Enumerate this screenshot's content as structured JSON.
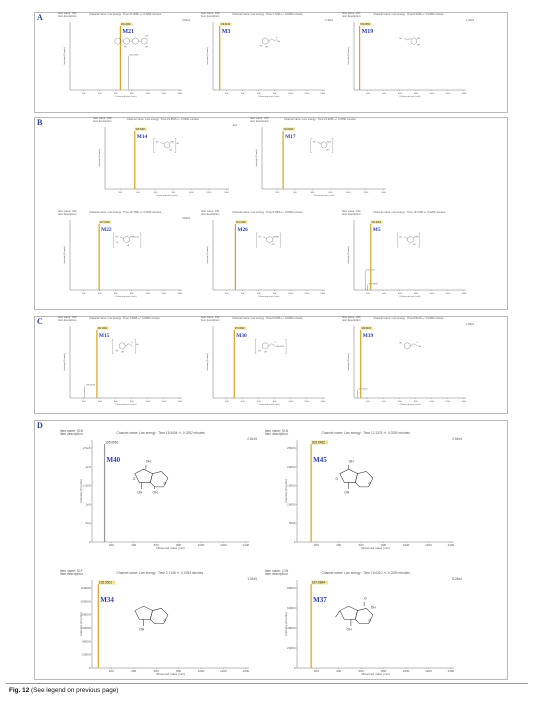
{
  "caption": {
    "label": "Fig. 12",
    "text": "(See legend on previous page)"
  },
  "panels": {
    "A": {
      "letter": "A",
      "spectra": [
        {
          "id": "A1",
          "x": 62,
          "y": 20,
          "w": 124,
          "h": 78,
          "compound": "M21",
          "peak_mass": "481.2000",
          "peak_frac": 0.45,
          "second_label": "305.0926",
          "second_frac": 0.52,
          "second_h": 0.55,
          "xmax": 1400,
          "cid_fs": 6,
          "chan": "Channel name: Low energy : Time 27.2055 +/- 0.0250 minutes",
          "meta": "Item name: C24\nItem description:",
          "scale": "3.82e4",
          "structure": "glycoside"
        },
        {
          "id": "A2",
          "x": 205,
          "y": 20,
          "w": 124,
          "h": 78,
          "compound": "M3",
          "peak_mass": "179.0343",
          "peak_frac": 0.06,
          "xmax": 1400,
          "cid_fs": 6,
          "chan": "Channel name: Low energy : Time 7.7235 +/- 0.0250 minutes",
          "meta": "Item name: C24\nItem description:",
          "scale": "7.36e3",
          "structure": "caffeic"
        },
        {
          "id": "A3",
          "x": 346,
          "y": 20,
          "w": 124,
          "h": 78,
          "compound": "M19",
          "peak_mass": "153.0550",
          "peak_frac": 0.05,
          "xmax": 1400,
          "cid_fs": 6,
          "chan": "Channel name: Low energy : Time 8.4445 +/- 0.0250 minutes",
          "meta": "Item name: C07\nItem description:",
          "scale": "1.34e3",
          "structure": "phenylethanol"
        }
      ]
    },
    "B": {
      "letter": "B",
      "spectra": [
        {
          "id": "B1",
          "x": 97,
          "y": 125,
          "w": 136,
          "h": 72,
          "compound": "M14",
          "peak_mass": "325.0000",
          "peak_frac": 0.24,
          "xmax": 1400,
          "cid_fs": 5.4,
          "chan": "Channel name: Low energy : Time 16.8515 +/- 0.0250 minutes",
          "meta": "Item name: C09\nItem description:",
          "scale": "4e4",
          "structure": "methoxy"
        },
        {
          "id": "B2",
          "x": 254,
          "y": 125,
          "w": 136,
          "h": 72,
          "compound": "M17",
          "peak_mass": "233.0000",
          "peak_frac": 0.17,
          "xmax": 1400,
          "cid_fs": 5.4,
          "chan": "Channel name: Low energy : Time 13.9425 +/- 0.0250 minutes",
          "meta": "Item name: C10\nItem description:",
          "scale": "",
          "structure": "sulfate"
        },
        {
          "id": "B3",
          "x": 62,
          "y": 218,
          "w": 124,
          "h": 80,
          "compound": "M22",
          "peak_mass": "417.0700",
          "peak_frac": 0.26,
          "xmax": 1400,
          "cid_fs": 5.4,
          "chan": "Channel name: Low energy : Time 10.7590 +/- 0.0250 minutes",
          "meta": "Item name: C24\nItem description:",
          "scale": "3.96e4",
          "structure": "glucuronide"
        },
        {
          "id": "B4",
          "x": 205,
          "y": 218,
          "w": 124,
          "h": 80,
          "compound": "M26",
          "peak_mass": "301.0180",
          "peak_frac": 0.2,
          "xmax": 1400,
          "cid_fs": 5.4,
          "chan": "Channel name: Low energy : Time 8.7805 +/- 0.0250 minutes",
          "meta": "Item name: C21\nItem description:",
          "scale": "",
          "structure": "doubleSO3"
        },
        {
          "id": "B5",
          "x": 346,
          "y": 218,
          "w": 124,
          "h": 80,
          "compound": "M5",
          "peak_mass": "232.0062",
          "peak_frac": 0.15,
          "second_label": "153.0111",
          "second_frac": 0.1,
          "second_h": 0.3,
          "third_label": "194.0899",
          "third_frac": 0.12,
          "third_h": 0.08,
          "xmax": 1400,
          "cid_fs": 5.4,
          "chan": "Channel name: Low energy : Time 12.2705 +/- 0.0250 minutes",
          "meta": "Item name: C23\nItem description:",
          "scale": "",
          "structure": "methoxySO3"
        }
      ]
    },
    "C": {
      "letter": "C",
      "spectra": [
        {
          "id": "C1",
          "x": 62,
          "y": 324,
          "w": 124,
          "h": 82,
          "compound": "M15",
          "peak_mass": "341.0000",
          "peak_frac": 0.24,
          "second_label": "179.0448",
          "second_frac": 0.13,
          "second_h": 0.18,
          "xmax": 1400,
          "cid_fs": 5.4,
          "chan": "Channel name: Low energy : Time 7.9695 +/- 0.0250 minutes",
          "meta": "Item name: C20\nItem description:",
          "scale": "",
          "structure": "caffeicGlc"
        },
        {
          "id": "C2",
          "x": 205,
          "y": 324,
          "w": 124,
          "h": 82,
          "compound": "M30",
          "peak_mass": "273.0000",
          "peak_frac": 0.19,
          "xmax": 1400,
          "cid_fs": 5.4,
          "chan": "Channel name: Low energy : Time 8.0035 +/- 0.0250 minutes",
          "meta": "Item name: C12\nItem description:",
          "scale": "",
          "structure": "caffeicSO3"
        },
        {
          "id": "C3",
          "x": 346,
          "y": 324,
          "w": 124,
          "h": 82,
          "compound": "M39",
          "peak_mass": "163.0400",
          "peak_frac": 0.06,
          "second_label": "119.0503",
          "second_frac": 0.03,
          "second_h": 0.12,
          "xmax": 1400,
          "cid_fs": 5.4,
          "chan": "Channel name: Low energy : Time 8.6120 +/- 0.0250 minutes",
          "meta": "Item name: C06\nItem description:",
          "scale": "1.65e4",
          "structure": "coumaric"
        }
      ]
    },
    "D": {
      "letter": "D",
      "spectra": [
        {
          "id": "D1",
          "x": 78,
          "y": 438,
          "w": 175,
          "h": 112,
          "compound": "M40",
          "peak_mass": "195.0652",
          "peak_frac": 0.08,
          "bar_color": "#9a9a9a",
          "xmax": 1400,
          "cid_fs": 7,
          "big": true,
          "chan": "Channel name: Low energy : Time 15.9404 +/- 0.0252 minutes",
          "meta": "Item name: S1N\nItem description:",
          "scale": "2.81e5",
          "yticks": [
            "0",
            "5e4",
            "1e5",
            "1.5e5",
            "2e5",
            "2.5e5"
          ],
          "structure": "iridoidEpoxy"
        },
        {
          "id": "D2",
          "x": 283,
          "y": 438,
          "w": 175,
          "h": 112,
          "compound": "M45",
          "peak_mass": "209.0462",
          "peak_frac": 0.09,
          "xmax": 1400,
          "cid_fs": 7,
          "big": true,
          "chan": "Channel name: Low energy : Time 12.1376 +/- 0.0250 minutes",
          "meta": "Item name: S1N\nItem description:",
          "scale": "2.54e4",
          "yticks": [
            "0",
            "5000",
            "10000",
            "15000",
            "20000",
            "25000"
          ],
          "structure": "iridoidOxo"
        },
        {
          "id": "D3",
          "x": 78,
          "y": 578,
          "w": 175,
          "h": 98,
          "compound": "M34",
          "peak_mass": "135.0501",
          "peak_frac": 0.04,
          "xmax": 1400,
          "cid_fs": 7,
          "big": true,
          "chan": "Channel name: Low energy : Time 2.7148 +/- 0.0253 minutes",
          "meta": "Item name: S1F\nItem description:",
          "scale": "1.26e5",
          "yticks": [
            "0",
            "20000",
            "40000",
            "60000",
            "80000",
            "100000",
            "120000"
          ],
          "structure": "iridoidSmall"
        },
        {
          "id": "D4",
          "x": 283,
          "y": 578,
          "w": 175,
          "h": 98,
          "compound": "M37",
          "peak_mass": "197.0844",
          "peak_frac": 0.09,
          "xmax": 1400,
          "cid_fs": 7,
          "big": true,
          "chan": "Channel name: Low energy : Time 15.0310 +/- 0.0250 minutes",
          "meta": "Item name: C1N\nItem description:",
          "scale": "8.28e4",
          "yticks": [
            "0",
            "20000",
            "40000",
            "60000",
            "80000"
          ],
          "structure": "iridoidAcid"
        }
      ]
    }
  },
  "axis": {
    "xlabel": "Observed mass (m/z)",
    "ylabel": "Intensity (Counts)",
    "xticks": [
      "200",
      "400",
      "600",
      "800",
      "1000",
      "1200",
      "1400"
    ]
  },
  "colors": {
    "peak": "#d7a422",
    "peak_label_bg": "#f2e59a",
    "compound_label": "#2a3caa",
    "panel_letter": "#2b3f8f",
    "highlight": "#d44bb0"
  }
}
